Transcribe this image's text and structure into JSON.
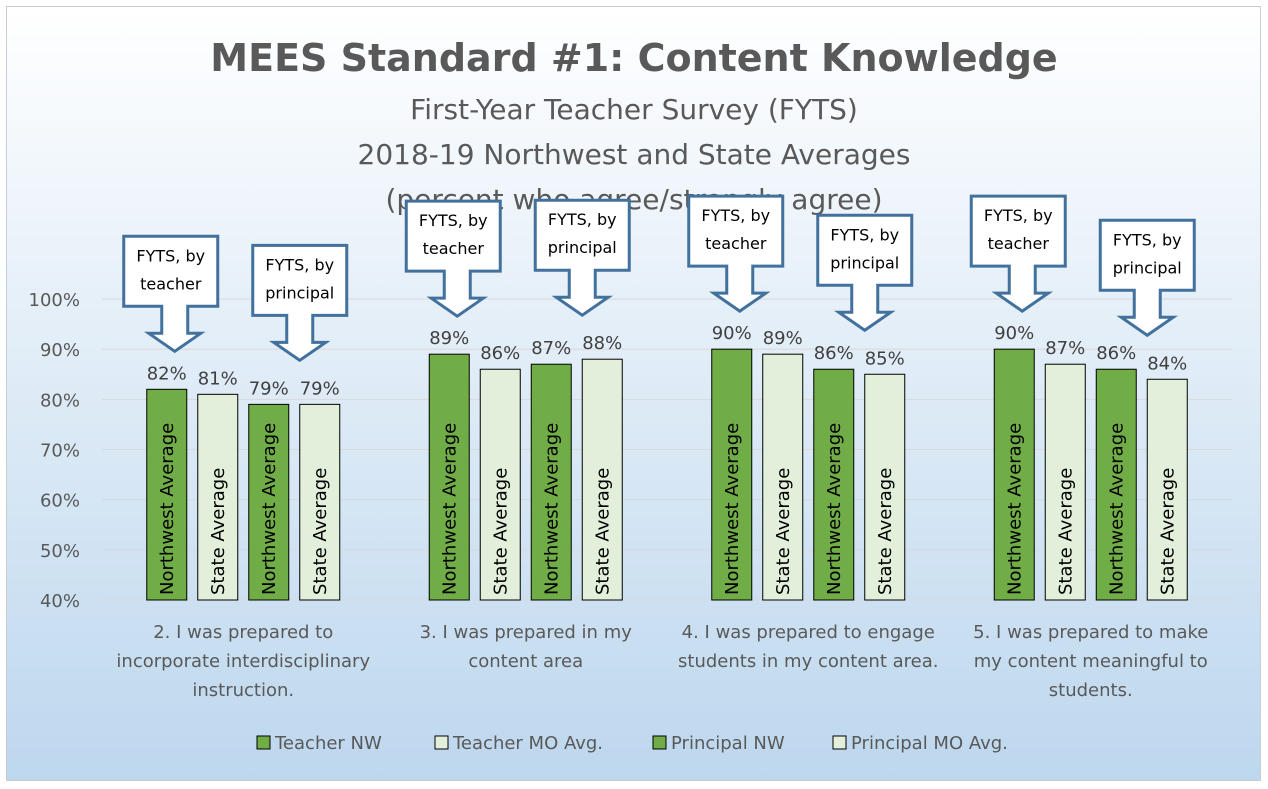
{
  "chart_data": {
    "type": "bar",
    "title": "MEES Standard #1: Content Knowledge",
    "subtitle_lines": [
      "First-Year Teacher Survey (FYTS)",
      "2018-19 Northwest and State Averages",
      "(percent who agree/strongly agree)"
    ],
    "categories": [
      [
        "2. I was prepared to",
        "incorporate interdisciplinary",
        "instruction."
      ],
      [
        "3. I was prepared in my",
        "content area"
      ],
      [
        "4. I was prepared to engage",
        "students in my content area."
      ],
      [
        "5. I was prepared to make",
        "my content meaningful to",
        "students."
      ]
    ],
    "series": [
      {
        "name": "Teacher NW",
        "bar_label": "Northwest Average",
        "color": "#70ad47",
        "values": [
          82,
          89,
          90,
          90
        ]
      },
      {
        "name": "Teacher MO Avg.",
        "bar_label": "State Average",
        "color": "#e2efda",
        "values": [
          81,
          86,
          89,
          87
        ]
      },
      {
        "name": "Principal NW",
        "bar_label": "Northwest Average",
        "color": "#70ad47",
        "values": [
          79,
          87,
          86,
          86
        ]
      },
      {
        "name": "Principal MO Avg.",
        "bar_label": "State Average",
        "color": "#e2efda",
        "values": [
          79,
          88,
          85,
          84
        ]
      }
    ],
    "data_label_suffix": "%",
    "ylim": [
      40,
      100
    ],
    "yticks": [
      40,
      50,
      60,
      70,
      80,
      90,
      100
    ],
    "ytick_labels": [
      "40%",
      "50%",
      "60%",
      "70%",
      "80%",
      "90%",
      "100%"
    ],
    "gridlines": true,
    "legend_position": "bottom",
    "annotations": {
      "teacher_callout": [
        "FYTS, by",
        "teacher"
      ],
      "principal_callout": [
        "FYTS, by",
        "principal"
      ]
    }
  },
  "colors": {
    "bar_outline": "#000000",
    "callout_border": "#41719c",
    "background_top": "#ffffff",
    "background_bottom": "#bdd7ee"
  }
}
